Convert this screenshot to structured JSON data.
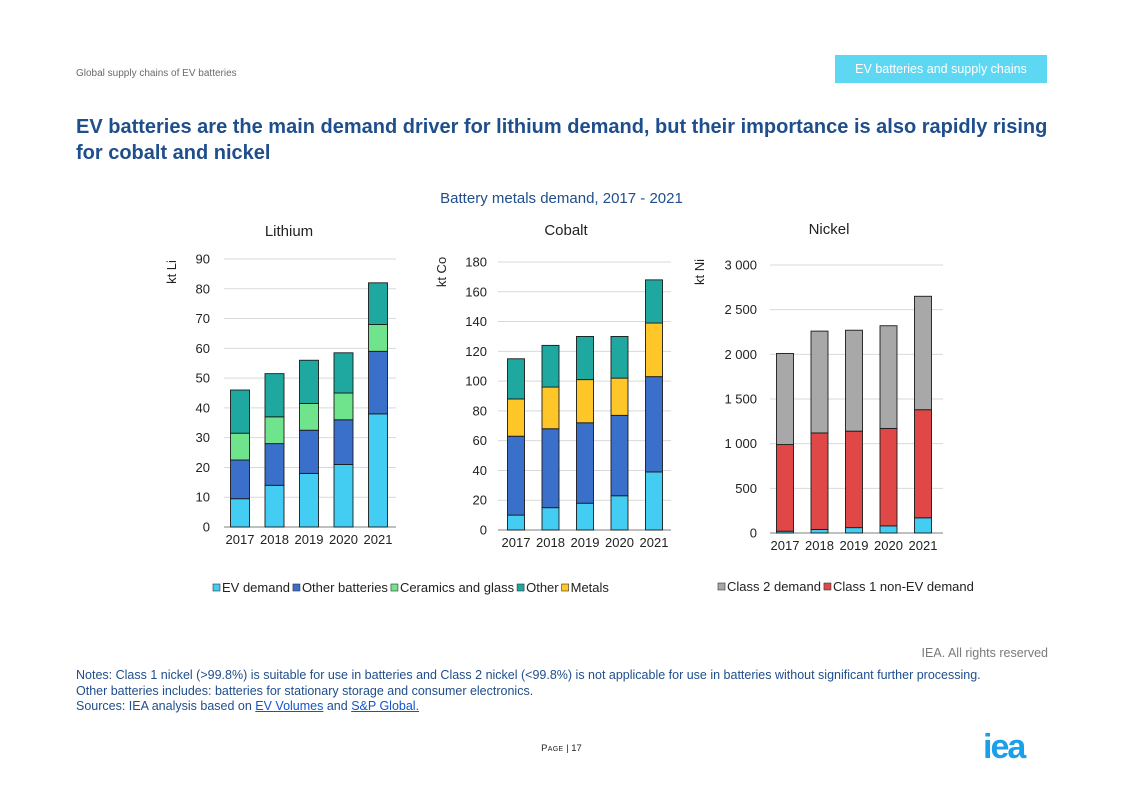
{
  "header": {
    "left_text": "Global supply chains of EV batteries",
    "tag": "EV batteries and supply chains"
  },
  "title": "EV batteries are the main demand driver for lithium demand, but their importance is also rapidly rising for cobalt and nickel",
  "figure_title": "Battery metals demand, 2017 - 2021",
  "colors": {
    "ev": "#43cdf2",
    "other_batteries": "#3a6fca",
    "ceramics": "#70e48c",
    "other": "#1fa8a0",
    "metals": "#ffc62a",
    "class2": "#a8a8a8",
    "class1": "#e04848"
  },
  "chart_data": [
    {
      "type": "bar",
      "stacked": true,
      "title": "Lithium",
      "ylabel": "kt Li",
      "ylim": [
        0,
        90
      ],
      "yticks": [
        "0",
        "10",
        "20",
        "30",
        "40",
        "50",
        "60",
        "70",
        "80",
        "90"
      ],
      "categories": [
        "2017",
        "2018",
        "2019",
        "2020",
        "2021"
      ],
      "series": [
        {
          "name": "EV demand",
          "color": "#43cdf2",
          "values": [
            9.5,
            14,
            18,
            21,
            38
          ]
        },
        {
          "name": "Other batteries",
          "color": "#3a6fca",
          "values": [
            13,
            14,
            14.5,
            15,
            21
          ]
        },
        {
          "name": "Ceramics and glass",
          "color": "#70e48c",
          "values": [
            9,
            9,
            9,
            9,
            9
          ]
        },
        {
          "name": "Other",
          "color": "#1fa8a0",
          "values": [
            14.5,
            14.5,
            14.5,
            13.5,
            14
          ]
        }
      ]
    },
    {
      "type": "bar",
      "stacked": true,
      "title": "Cobalt",
      "ylabel": "kt Co",
      "ylim": [
        0,
        180
      ],
      "yticks": [
        "0",
        "20",
        "40",
        "60",
        "80",
        "100",
        "120",
        "140",
        "160",
        "180"
      ],
      "categories": [
        "2017",
        "2018",
        "2019",
        "2020",
        "2021"
      ],
      "series": [
        {
          "name": "EV demand",
          "color": "#43cdf2",
          "values": [
            10,
            15,
            18,
            23,
            39
          ]
        },
        {
          "name": "Other batteries",
          "color": "#3a6fca",
          "values": [
            53,
            53,
            54,
            54,
            64
          ]
        },
        {
          "name": "Metals",
          "color": "#ffc62a",
          "values": [
            25,
            28,
            29,
            25,
            36
          ]
        },
        {
          "name": "Other",
          "color": "#1fa8a0",
          "values": [
            27,
            28,
            29,
            28,
            29
          ]
        }
      ]
    },
    {
      "type": "bar",
      "stacked": true,
      "title": "Nickel",
      "ylabel": "kt Ni",
      "ylim": [
        0,
        3000
      ],
      "yticks": [
        "0",
        "500",
        "1 000",
        "1 500",
        "2 000",
        "2 500",
        "3 000"
      ],
      "categories": [
        "2017",
        "2018",
        "2019",
        "2020",
        "2021"
      ],
      "series": [
        {
          "name": "EV demand",
          "color": "#43cdf2",
          "values": [
            20,
            40,
            60,
            80,
            170
          ]
        },
        {
          "name": "Class 1 non-EV demand",
          "color": "#e04848",
          "values": [
            970,
            1080,
            1080,
            1090,
            1210
          ]
        },
        {
          "name": "Class 2 demand",
          "color": "#a8a8a8",
          "values": [
            1020,
            1140,
            1130,
            1150,
            1270
          ]
        }
      ]
    }
  ],
  "legend_left": [
    {
      "label": "EV demand",
      "color": "#43cdf2"
    },
    {
      "label": "Other batteries",
      "color": "#3a6fca"
    },
    {
      "label": "Ceramics and glass",
      "color": "#70e48c"
    },
    {
      "label": "Other",
      "color": "#1fa8a0"
    },
    {
      "label": "Metals",
      "color": "#ffc62a"
    }
  ],
  "legend_right": [
    {
      "label": "Class 2 demand",
      "color": "#a8a8a8"
    },
    {
      "label": "Class 1 non-EV demand",
      "color": "#e04848"
    }
  ],
  "rights": "IEA. All rights reserved",
  "notes": {
    "line1": "Notes: Class 1 nickel (>99.8%) is suitable for use in batteries and Class 2 nickel (<99.8%) is not applicable for use in batteries without significant further processing.",
    "line2": "Other batteries includes: batteries for stationary storage and consumer electronics.",
    "sources_prefix": "Sources: IEA analysis based on ",
    "link1": "EV Volumes",
    "and": " and ",
    "link2": "S&P Global."
  },
  "page": {
    "label": "Page",
    "sep": " | ",
    "number": "17"
  },
  "logo_text": "iea"
}
